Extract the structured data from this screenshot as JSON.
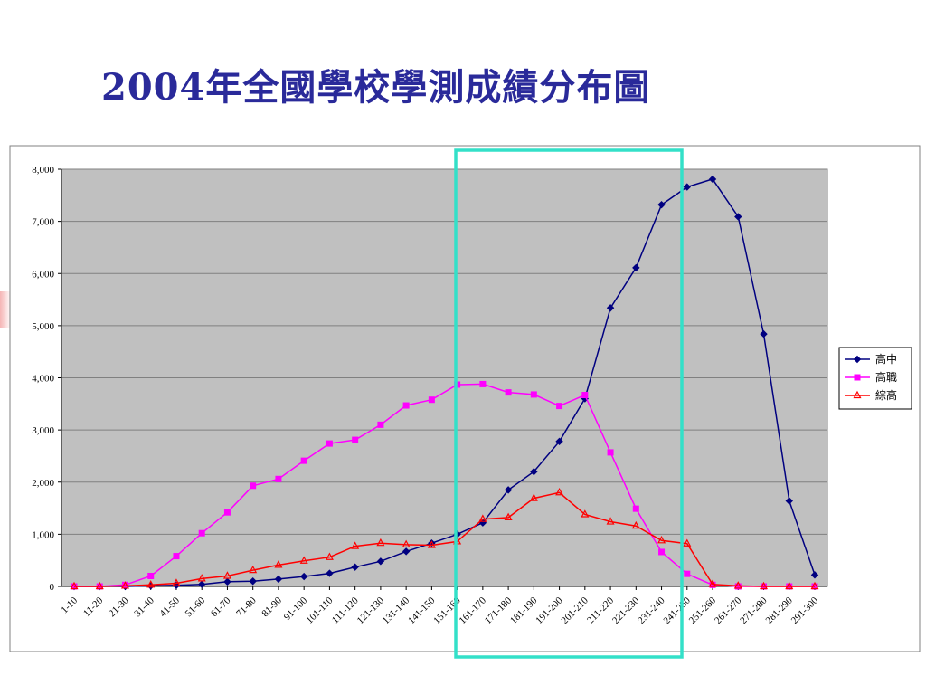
{
  "slide": {
    "title": "2004年全國學校學測成績分布圖"
  },
  "colors": {
    "title": "#2a2a9a",
    "plot_background": "#c0c0c0",
    "gridline": "#808080",
    "highlight_box": "#33e0c8"
  },
  "chart_data": {
    "type": "line",
    "title": "",
    "xlabel": "",
    "ylabel": "",
    "ylim": [
      0,
      8000
    ],
    "yticks": [
      "0",
      "1,000",
      "2,000",
      "3,000",
      "4,000",
      "5,000",
      "6,000",
      "7,000",
      "8,000"
    ],
    "grid": true,
    "legend_position": "right",
    "categories": [
      "1-10",
      "11-20",
      "21-30",
      "31-40",
      "41-50",
      "51-60",
      "61-70",
      "71-80",
      "81-90",
      "91-100",
      "101-110",
      "111-120",
      "121-130",
      "131-140",
      "141-150",
      "151-160",
      "161-170",
      "171-180",
      "181-190",
      "191-200",
      "201-210",
      "211-220",
      "221-230",
      "231-240",
      "241-250",
      "251-260",
      "261-270",
      "271-280",
      "281-290",
      "291-300"
    ],
    "series": [
      {
        "name": "高中",
        "color": "#000080",
        "marker": "diamond",
        "values": [
          0,
          0,
          0,
          10,
          20,
          40,
          90,
          100,
          140,
          190,
          250,
          370,
          480,
          670,
          830,
          1000,
          1220,
          1850,
          2200,
          2780,
          3600,
          5340,
          6110,
          7320,
          7660,
          7810,
          7090,
          4840,
          1640,
          220
        ]
      },
      {
        "name": "高職",
        "color": "#ff00ff",
        "marker": "square",
        "values": [
          0,
          0,
          30,
          200,
          580,
          1020,
          1420,
          1930,
          2060,
          2410,
          2740,
          2810,
          3100,
          3470,
          3580,
          3870,
          3880,
          3720,
          3680,
          3460,
          3670,
          2570,
          1490,
          660,
          240,
          30,
          0,
          0,
          0,
          0
        ]
      },
      {
        "name": "綜高",
        "color": "#ff0000",
        "marker": "triangle",
        "values": [
          0,
          0,
          10,
          30,
          60,
          150,
          200,
          310,
          410,
          490,
          560,
          770,
          830,
          800,
          790,
          860,
          1290,
          1320,
          1690,
          1800,
          1380,
          1240,
          1160,
          880,
          820,
          40,
          10,
          0,
          0,
          0
        ]
      }
    ]
  }
}
